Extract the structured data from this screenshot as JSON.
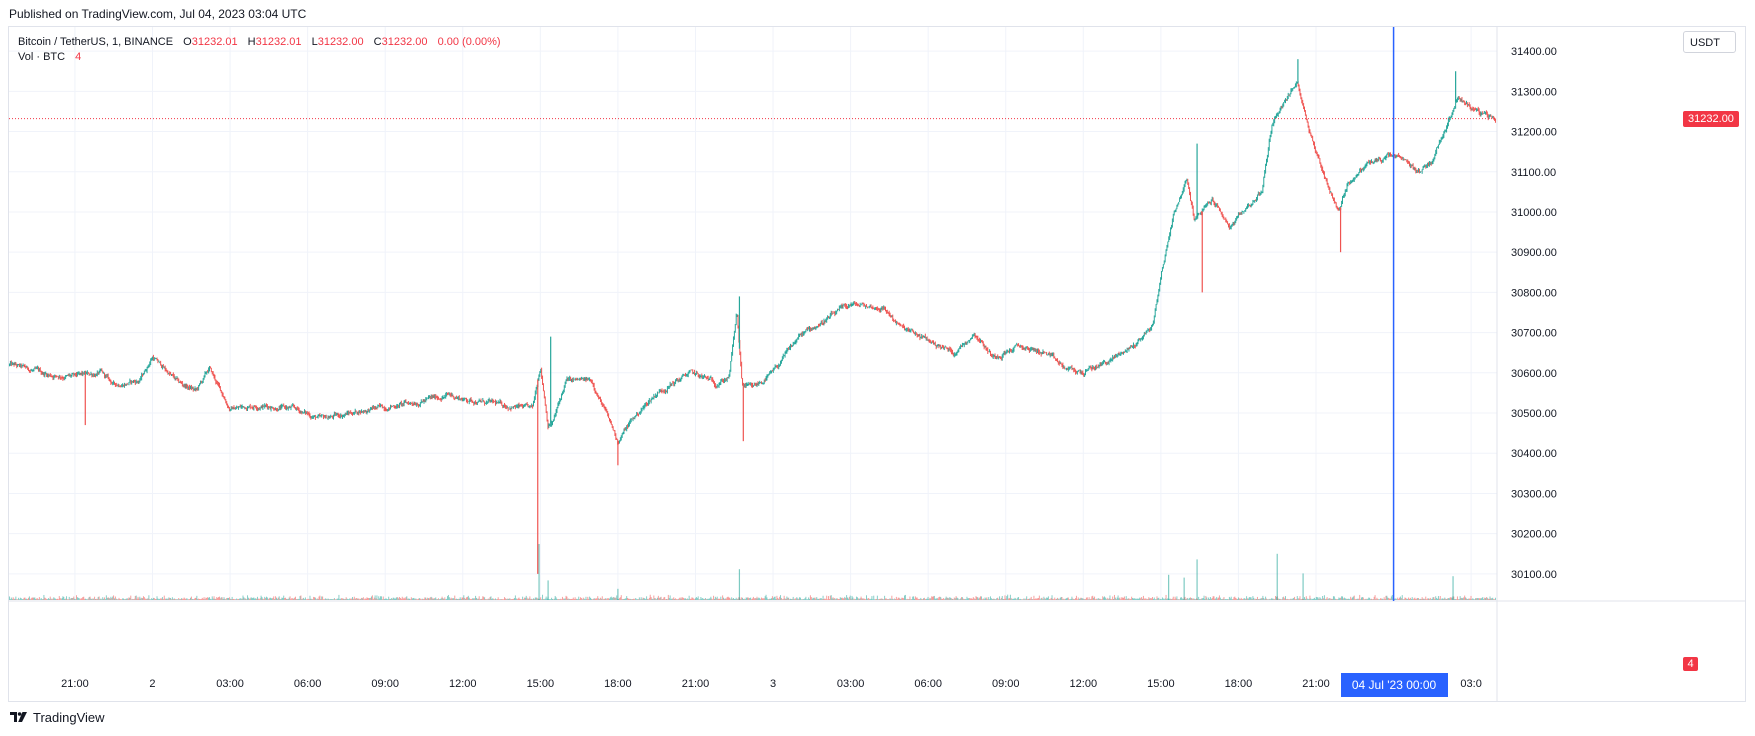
{
  "header": {
    "published": "Published on TradingView.com, Jul 04, 2023 03:04 UTC"
  },
  "legend": {
    "symbol": "Bitcoin / TetherUS, 1, BINANCE",
    "o_label": "O",
    "o_value": "31232.01",
    "h_label": "H",
    "h_value": "31232.01",
    "l_label": "L",
    "l_value": "31232.00",
    "c_label": "C",
    "c_value": "31232.00",
    "change": "0.00 (0.00%)",
    "vol_label": "Vol · BTC",
    "vol_value": "4"
  },
  "price_scale": {
    "unit": "USDT",
    "last_price": "31232.00",
    "last_volume": "4"
  },
  "crosshair": {
    "time_label": "04 Jul '23   00:00"
  },
  "branding": {
    "name": "TradingView"
  },
  "colors": {
    "up": "#26a69a",
    "down": "#ef5350",
    "grid": "#f0f3fa",
    "crosshair": "#2962ff",
    "last": "#f23645"
  },
  "chart_data": {
    "type": "candlestick",
    "interval": "1 minute",
    "title": "Bitcoin / TetherUS, 1, BINANCE",
    "y_axis": {
      "ticks": [
        31400,
        31300,
        31200,
        31100,
        31000,
        30900,
        30800,
        30700,
        30600,
        30500,
        30400,
        30300,
        30200,
        30100
      ],
      "tick_labels": [
        "31400.00",
        "31300.00",
        "31200.00",
        "31100.00",
        "31000.00",
        "30900.00",
        "30800.00",
        "30700.00",
        "30600.00",
        "30500.00",
        "30400.00",
        "30300.00",
        "30200.00",
        "30100.00"
      ],
      "range": [
        30035,
        31460
      ]
    },
    "x_axis": {
      "ticks": [
        -27,
        -24,
        -21,
        -18,
        -15,
        -12,
        -9,
        -6,
        -3,
        0,
        3,
        6,
        9,
        12,
        15,
        18,
        21,
        24,
        27
      ],
      "tick_labels": [
        "21:00",
        "2",
        "03:00",
        "06:00",
        "09:00",
        "12:00",
        "15:00",
        "18:00",
        "21:00",
        "3",
        "03:00",
        "06:00",
        "09:00",
        "12:00",
        "15:00",
        "18:00",
        "21:00",
        "",
        "03:0"
      ],
      "range_hours": [
        -29.55,
        28.0
      ]
    },
    "crosshair_time_hours": 24,
    "last_price": 31232.0,
    "price_path": [
      [
        -29.5,
        30620
      ],
      [
        -28,
        30595
      ],
      [
        -27,
        30590
      ],
      [
        -26,
        30600
      ],
      [
        -25.5,
        30570
      ],
      [
        -24.5,
        30580
      ],
      [
        -24,
        30640
      ],
      [
        -23,
        30575
      ],
      [
        -22.3,
        30555
      ],
      [
        -21.8,
        30610
      ],
      [
        -21,
        30510
      ],
      [
        -20,
        30520
      ],
      [
        -18.5,
        30510
      ],
      [
        -17.5,
        30485
      ],
      [
        -16,
        30505
      ],
      [
        -14,
        30525
      ],
      [
        -12.5,
        30545
      ],
      [
        -12,
        30535
      ],
      [
        -10.5,
        30520
      ],
      [
        -9.3,
        30510
      ],
      [
        -9,
        30620
      ],
      [
        -8.7,
        30470
      ],
      [
        -8.5,
        30480
      ],
      [
        -8,
        30580
      ],
      [
        -7,
        30580
      ],
      [
        -6.6,
        30520
      ],
      [
        -6,
        30430
      ],
      [
        -5.5,
        30480
      ],
      [
        -4.5,
        30550
      ],
      [
        -3.2,
        30600
      ],
      [
        -2.2,
        30575
      ],
      [
        -1.7,
        30590
      ],
      [
        -1.4,
        30750
      ],
      [
        -1.2,
        30570
      ],
      [
        -0.8,
        30560
      ],
      [
        0,
        30600
      ],
      [
        1,
        30690
      ],
      [
        2,
        30730
      ],
      [
        3,
        30770
      ],
      [
        4.3,
        30760
      ],
      [
        5,
        30710
      ],
      [
        6,
        30680
      ],
      [
        7,
        30650
      ],
      [
        7.8,
        30700
      ],
      [
        8.5,
        30640
      ],
      [
        9.5,
        30665
      ],
      [
        10.5,
        30650
      ],
      [
        11.3,
        30610
      ],
      [
        12,
        30600
      ],
      [
        13,
        30630
      ],
      [
        14,
        30670
      ],
      [
        14.7,
        30720
      ],
      [
        15,
        30840
      ],
      [
        15.5,
        31000
      ],
      [
        16,
        31080
      ],
      [
        16.3,
        30980
      ],
      [
        17,
        31030
      ],
      [
        17.7,
        30960
      ],
      [
        18.3,
        31010
      ],
      [
        18.9,
        31050
      ],
      [
        19.3,
        31220
      ],
      [
        19.8,
        31280
      ],
      [
        20.3,
        31320
      ],
      [
        20.6,
        31240
      ],
      [
        21,
        31150
      ],
      [
        21.5,
        31060
      ],
      [
        21.9,
        31000
      ],
      [
        22.2,
        31070
      ],
      [
        23,
        31120
      ],
      [
        24,
        31140
      ],
      [
        25,
        31100
      ],
      [
        25.5,
        31130
      ],
      [
        26,
        31210
      ],
      [
        26.5,
        31290
      ],
      [
        27,
        31260
      ],
      [
        27.5,
        31240
      ],
      [
        27.9,
        31232
      ]
    ],
    "wick_spikes": [
      {
        "t": -26.6,
        "low": 30470
      },
      {
        "t": -9.1,
        "low": 30100
      },
      {
        "t": -8.6,
        "high": 30690
      },
      {
        "t": -6.0,
        "low": 30370
      },
      {
        "t": -1.3,
        "high": 30790
      },
      {
        "t": -1.15,
        "low": 30430
      },
      {
        "t": 16.4,
        "high": 31170
      },
      {
        "t": 16.6,
        "low": 30800
      },
      {
        "t": 20.3,
        "high": 31380
      },
      {
        "t": 21.95,
        "low": 30900
      },
      {
        "t": 26.4,
        "high": 31350
      }
    ],
    "volume_spikes": [
      {
        "t": -9.05,
        "v": 4.0
      },
      {
        "t": -8.7,
        "v": 1.4
      },
      {
        "t": -6.0,
        "v": 0.8
      },
      {
        "t": -1.3,
        "v": 2.2
      },
      {
        "t": 15.3,
        "v": 1.8
      },
      {
        "t": 15.9,
        "v": 1.6
      },
      {
        "t": 16.4,
        "v": 2.9
      },
      {
        "t": 19.5,
        "v": 3.3
      },
      {
        "t": 20.5,
        "v": 1.9
      },
      {
        "t": 26.3,
        "v": 1.7
      }
    ]
  }
}
